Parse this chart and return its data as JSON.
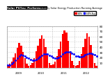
{
  "title": "Solar PV/Inv. Performance",
  "subtitle": "Monthly Solar Energy Production Running Average",
  "bar_color": "#ff0000",
  "avg_color": "#0000ff",
  "background_color": "#ffffff",
  "plot_bg": "#ffffff",
  "grid_color": "#aaaaaa",
  "monthly_values": [
    5,
    8,
    12,
    20,
    28,
    38,
    48,
    42,
    30,
    18,
    8,
    4,
    6,
    10,
    18,
    32,
    42,
    55,
    62,
    56,
    40,
    24,
    10,
    5,
    7,
    12,
    22,
    36,
    50,
    65,
    72,
    68,
    52,
    32,
    14,
    6,
    4,
    6,
    14,
    26,
    40,
    56,
    66,
    60,
    44,
    26,
    10,
    4
  ],
  "running_avg": [
    5,
    6,
    8,
    11,
    15,
    19,
    23,
    25,
    24,
    23,
    20,
    18,
    16,
    15,
    15,
    16,
    18,
    21,
    24,
    26,
    26,
    26,
    24,
    22,
    20,
    19,
    19,
    20,
    22,
    26,
    29,
    31,
    31,
    30,
    28,
    26,
    23,
    22,
    21,
    21,
    22,
    25,
    27,
    28,
    28,
    27,
    25,
    23
  ],
  "n_months": 48,
  "ylim": [
    0,
    80
  ],
  "yticks": [
    10,
    20,
    30,
    40,
    50,
    60,
    70,
    80
  ],
  "legend_bar_label": "kWh",
  "legend_avg_label": "kWh Avg",
  "year_labels": [
    "2009",
    "2010",
    "2011",
    "2012"
  ]
}
